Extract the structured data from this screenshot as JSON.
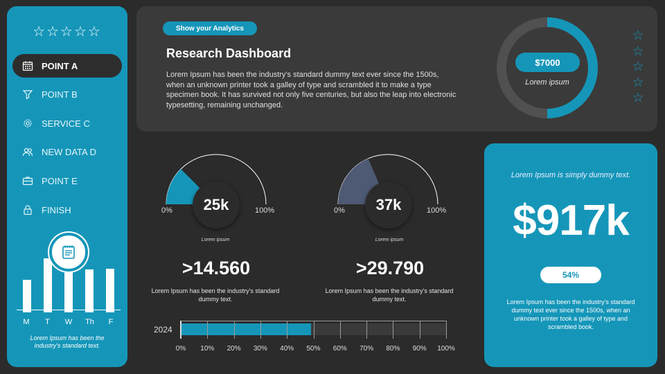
{
  "sidebar": {
    "stars": "☆☆☆☆☆",
    "items": [
      {
        "label": "POINT A",
        "icon": "calendar-icon",
        "active": true
      },
      {
        "label": "POINT B",
        "icon": "funnel-icon",
        "active": false
      },
      {
        "label": "SERVICE C",
        "icon": "gear-icon",
        "active": false
      },
      {
        "label": "NEW DATA  D",
        "icon": "users-icon",
        "active": false
      },
      {
        "label": "POINT E",
        "icon": "briefcase-icon",
        "active": false
      },
      {
        "label": "FINISH",
        "icon": "lock-icon",
        "active": false
      }
    ],
    "mini_chart": {
      "labels": [
        "M",
        "T",
        "W",
        "Th",
        "F"
      ],
      "values": [
        0.42,
        0.7,
        0.88,
        0.55,
        0.56
      ]
    },
    "footer": "Lorem Ipsum has been the industry's standard text."
  },
  "top": {
    "tag": "Show your Analytics",
    "title": "Research Dashboard",
    "body": "Lorem Ipsum has been the industry's standard dummy text ever since the 1500s, when an unknown printer took a galley of type and scrambled it to make a type specimen book. It has survived not only five centuries, but also the leap into electronic typesetting, remaining unchanged.",
    "donut_value": "$7000",
    "donut_label": "Lorem ipsum",
    "donut_fraction": 0.5,
    "side_stars": [
      "☆",
      "☆",
      "☆",
      "☆",
      "☆"
    ]
  },
  "gauges": [
    {
      "value": "25k",
      "fraction": 0.25,
      "min": "0%",
      "max": "100%",
      "sub": "Lorem ipsum",
      "color": "#1596b9",
      "big": ">14.560",
      "desc": "Lorem Ipsum has been the industry's standard dummy text."
    },
    {
      "value": "37k",
      "fraction": 0.37,
      "min": "0%",
      "max": "100%",
      "sub": "Lorem ipsum",
      "color": "#4e5a73",
      "big": ">29.790",
      "desc": "Lorem Ipsum has been the industry's standard dummy text."
    }
  ],
  "progress": {
    "year": "2024",
    "fraction": 0.49,
    "ticks": [
      "0%",
      "10%",
      "20%",
      "30%",
      "40%",
      "50%",
      "60%",
      "70%",
      "80%",
      "90%",
      "100%"
    ]
  },
  "card": {
    "top": "Lorem Ipsum is simply dummy text.",
    "big": "$917k",
    "pill": "54%",
    "body": "Lorem Ipsum has been the industry's standard dummy text ever since the 1500s, when an unknown printer took a galley of type and scrambled book."
  },
  "colors": {
    "accent": "#1596b9",
    "panel": "#3a3a3a",
    "bg": "#2b2b2b"
  }
}
